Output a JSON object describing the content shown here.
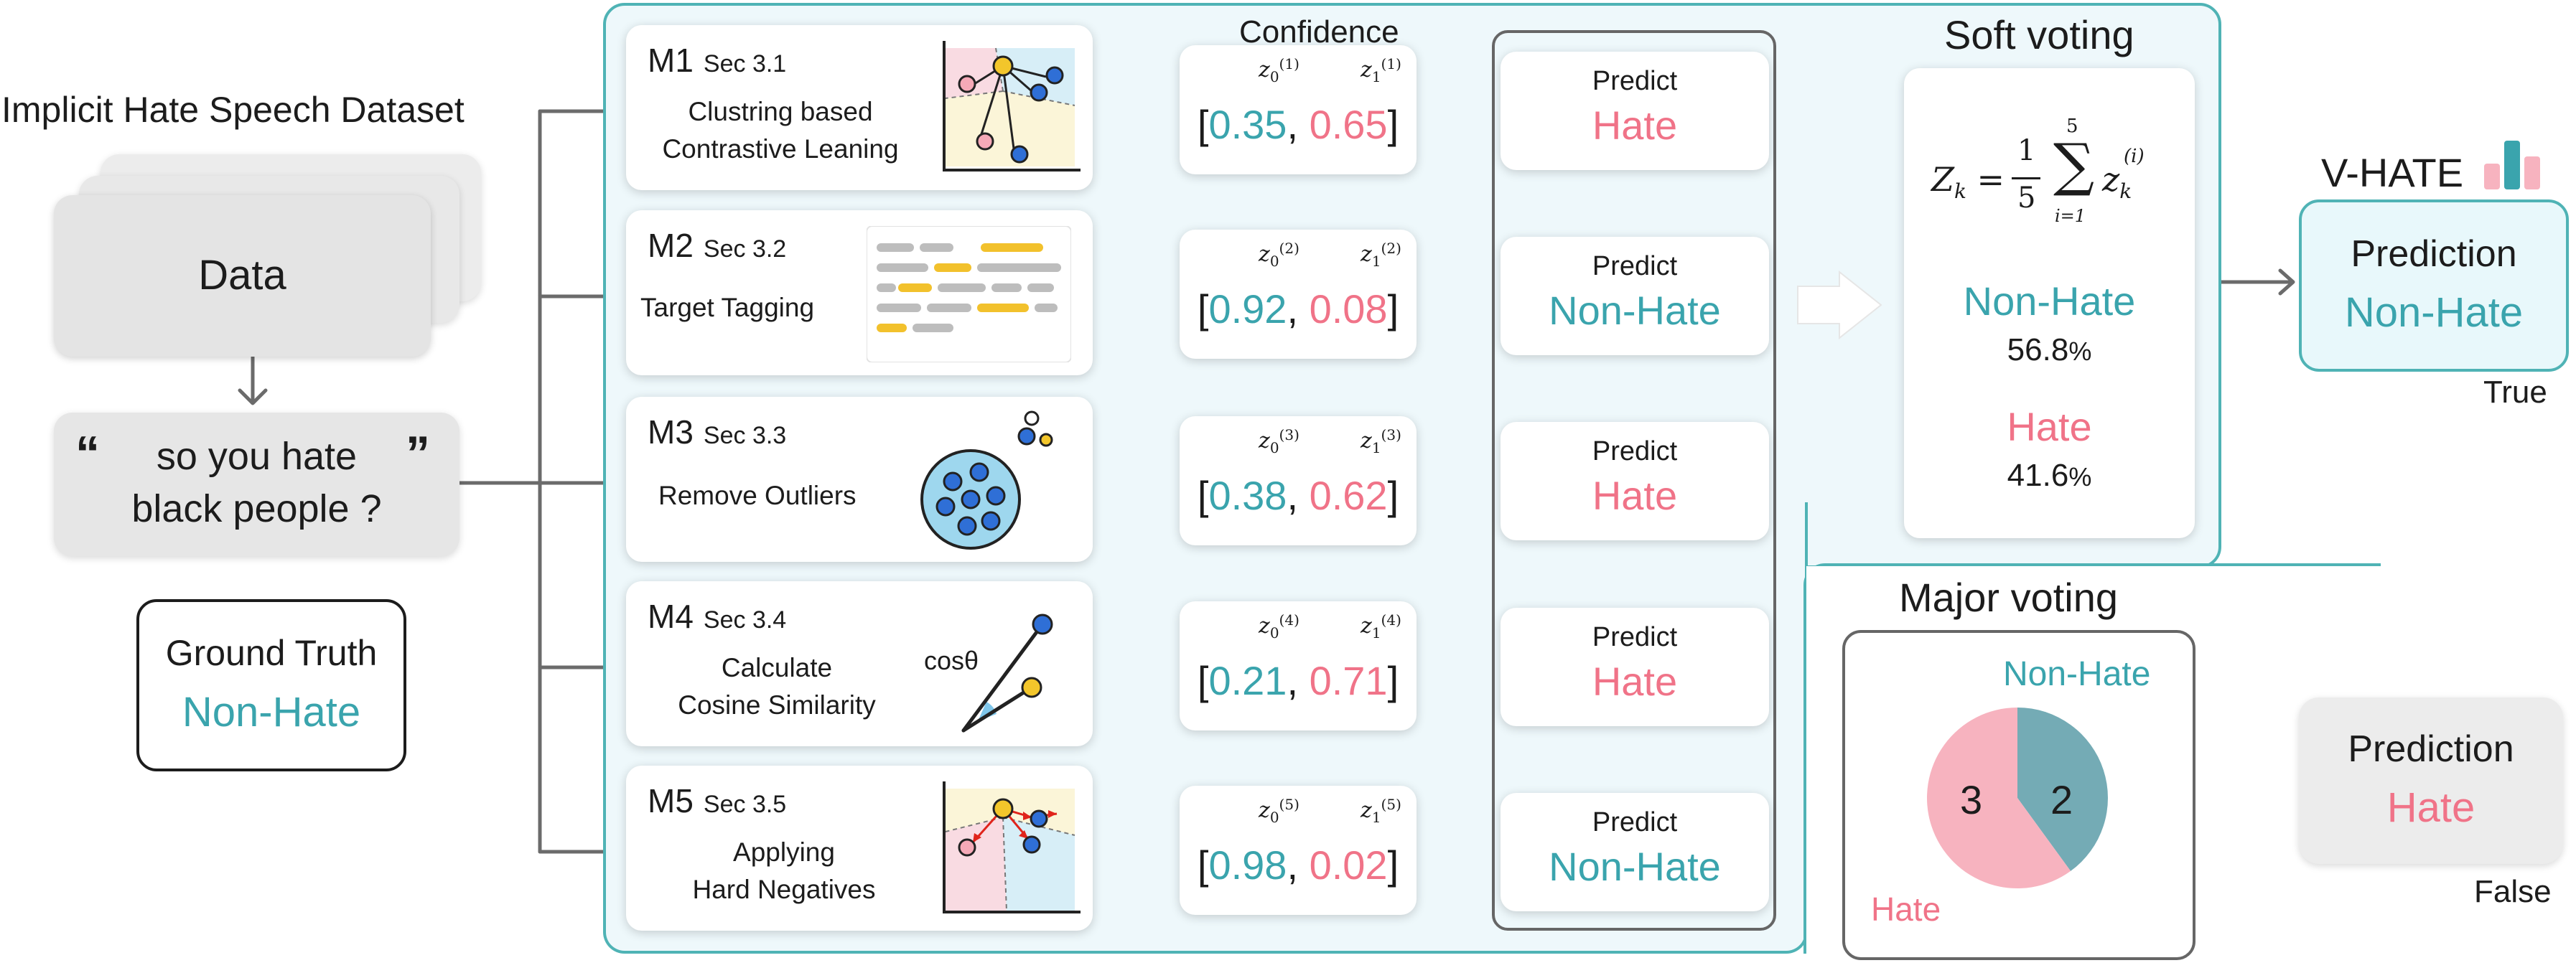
{
  "input": {
    "dataset_title": "Implicit Hate Speech Dataset",
    "data_label": "Data",
    "open_quote": "“",
    "close_quote": "”",
    "sample_line1": "so you hate",
    "sample_line2": "black people ?",
    "ground_truth_label": "Ground Truth",
    "ground_truth_value": "Non-Hate"
  },
  "confidence_header": "Confidence",
  "methods": [
    {
      "name": "M1",
      "sec": "Sec 3.1",
      "desc": [
        "Clustring based",
        "Contrastive Leaning"
      ],
      "z0_label": "(1)",
      "z0": "0.35",
      "z1": "0.65",
      "predict": "Predict",
      "result": "Hate"
    },
    {
      "name": "M2",
      "sec": "Sec 3.2",
      "desc": [
        "Target Tagging"
      ],
      "z0_label": "(2)",
      "z0": "0.92",
      "z1": "0.08",
      "predict": "Predict",
      "result": "Non-Hate"
    },
    {
      "name": "M3",
      "sec": "Sec 3.3",
      "desc": [
        "Remove Outliers"
      ],
      "z0_label": "(3)",
      "z0": "0.38",
      "z1": "0.62",
      "predict": "Predict",
      "result": "Hate"
    },
    {
      "name": "M4",
      "sec": "Sec 3.4",
      "desc": [
        "Calculate",
        "Cosine Similarity"
      ],
      "z0_label": "(4)",
      "z0": "0.21",
      "z1": "0.71",
      "predict": "Predict",
      "result": "Hate",
      "icon_label": "cosθ"
    },
    {
      "name": "M5",
      "sec": "Sec 3.5",
      "desc": [
        "Applying",
        "Hard Negatives"
      ],
      "z0_label": "(5)",
      "z0": "0.98",
      "z1": "0.02",
      "predict": "Predict",
      "result": "Non-Hate"
    }
  ],
  "soft_voting": {
    "title": "Soft voting",
    "formula_lhs": "Z",
    "formula_lhs_sub": "k",
    "formula_frac_num": "1",
    "formula_frac_den": "5",
    "formula_sum_top": "5",
    "formula_sum_bottom": "i=1",
    "formula_term": "z",
    "formula_term_sub": "k",
    "formula_term_sup": "(i)",
    "non_hate_label": "Non-Hate",
    "non_hate_value": "56.8",
    "hate_label": "Hate",
    "hate_value": "41.6",
    "percent": "%",
    "brand": "V-HATE",
    "prediction_label": "Prediction",
    "prediction_value": "Non-Hate",
    "verdict": "True"
  },
  "major_voting": {
    "title": "Major voting",
    "non_hate_label": "Non-Hate",
    "hate_label": "Hate",
    "non_hate_votes": 2,
    "hate_votes": 3,
    "non_hate_votes_text": "2",
    "hate_votes_text": "3",
    "prediction_label": "Prediction",
    "prediction_value": "Hate",
    "verdict": "False"
  },
  "colors": {
    "teal": "#3aa4ad",
    "pink": "#f07388",
    "panel_border": "#4fb3b5",
    "panel_fill": "#eef8fb",
    "pie_teal": "#74abb5",
    "pie_pink": "#f7b3bf",
    "arrow": "#6b6b6b"
  },
  "chart_data": {
    "type": "pie",
    "categories": [
      "Non-Hate",
      "Hate"
    ],
    "values": [
      2,
      3
    ]
  }
}
